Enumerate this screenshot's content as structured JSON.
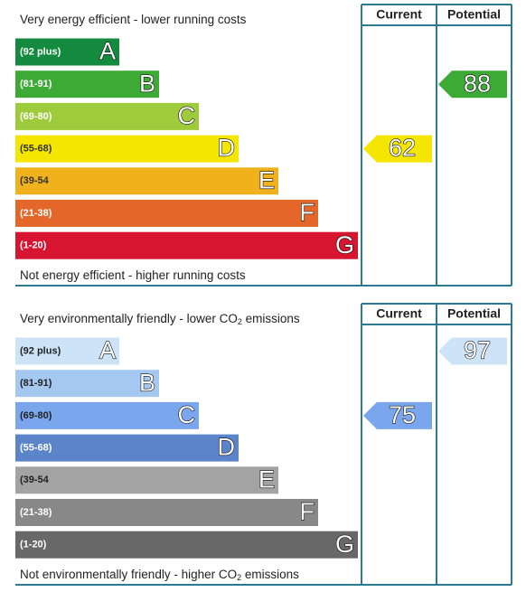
{
  "chart_data": [
    {
      "type": "epc",
      "top_text": [
        "Very energy efficient - lower running costs"
      ],
      "bottom_text": [
        "Not energy efficient - higher running costs"
      ],
      "headers": [
        "Current",
        "Potential"
      ],
      "bands": [
        {
          "range": "(92 plus)",
          "letter": "A",
          "min": 92,
          "color": "#138a3d",
          "label_color": "#ffffff"
        },
        {
          "range": "(81-91)",
          "letter": "B",
          "min": 81,
          "color": "#3daa35",
          "label_color": "#ffffff"
        },
        {
          "range": "(69-80)",
          "letter": "C",
          "min": 69,
          "color": "#9dcb3b",
          "label_color": "#ffffff"
        },
        {
          "range": "(55-68)",
          "letter": "D",
          "min": 55,
          "color": "#f4e600",
          "label_color": "#333333"
        },
        {
          "range": "(39-54",
          "letter": "E",
          "min": 39,
          "color": "#efb21c",
          "label_color": "#333333"
        },
        {
          "range": "(21-38)",
          "letter": "F",
          "min": 21,
          "color": "#e46628",
          "label_color": "#ffffff"
        },
        {
          "range": "(1-20)",
          "letter": "G",
          "min": 1,
          "color": "#d81530",
          "label_color": "#ffffff"
        }
      ],
      "current": 62,
      "potential": 88
    },
    {
      "type": "epc",
      "top_text": [
        "Very environmentally friendly - lower CO",
        "2",
        " emissions"
      ],
      "bottom_text": [
        "Not environmentally friendly - higher CO",
        "2",
        " emissions"
      ],
      "headers": [
        "Current",
        "Potential"
      ],
      "bands": [
        {
          "range": "(92 plus)",
          "letter": "A",
          "min": 92,
          "color": "#cde3f8",
          "label_color": "#222222"
        },
        {
          "range": "(81-91)",
          "letter": "B",
          "min": 81,
          "color": "#a5c8f1",
          "label_color": "#222222"
        },
        {
          "range": "(69-80)",
          "letter": "C",
          "min": 69,
          "color": "#7aa6ee",
          "label_color": "#222222"
        },
        {
          "range": "(55-68)",
          "letter": "D",
          "min": 55,
          "color": "#5b84cb",
          "label_color": "#ffffff"
        },
        {
          "range": "(39-54",
          "letter": "E",
          "min": 39,
          "color": "#a3a3a3",
          "label_color": "#222222"
        },
        {
          "range": "(21-38)",
          "letter": "F",
          "min": 21,
          "color": "#888888",
          "label_color": "#ffffff"
        },
        {
          "range": "(1-20)",
          "letter": "G",
          "min": 1,
          "color": "#686868",
          "label_color": "#ffffff"
        }
      ],
      "current": 75,
      "potential": 97
    }
  ]
}
